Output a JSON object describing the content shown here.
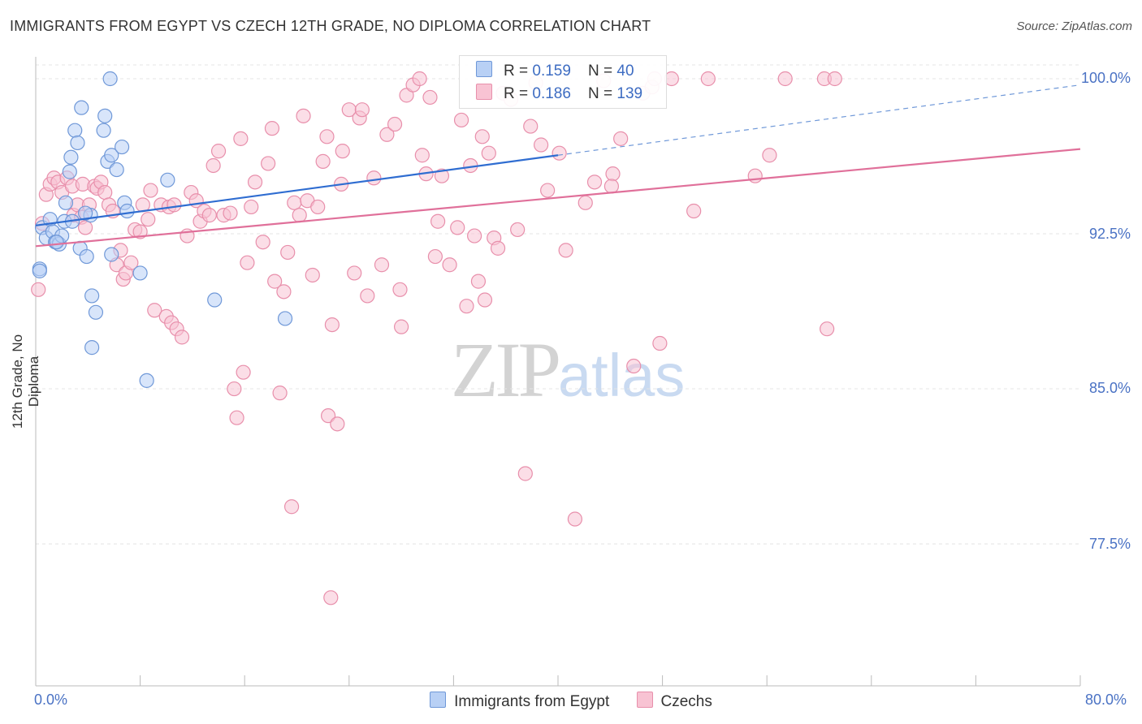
{
  "title": "IMMIGRANTS FROM EGYPT VS CZECH 12TH GRADE, NO DIPLOMA CORRELATION CHART",
  "source": "Source: ZipAtlas.com",
  "watermark": {
    "zip": "ZIP",
    "atlas": "atlas"
  },
  "legend": {
    "rows": [
      {
        "r_label": "R = ",
        "r_value": "0.159",
        "n_label": "N = ",
        "n_value": "40"
      },
      {
        "r_label": "R = ",
        "r_value": "0.186",
        "n_label": "N = ",
        "n_value": "139"
      }
    ]
  },
  "colors": {
    "egypt_fill": "#b8d0f5",
    "egypt_stroke": "#6f98d8",
    "egypt_line": "#2f6dd1",
    "czech_fill": "#f8c3d3",
    "czech_stroke": "#e88fab",
    "czech_line": "#e0709a",
    "tick_text": "#4a72c4",
    "grid": "#e4e4e4"
  },
  "chart_data": {
    "type": "scatter",
    "title": "IMMIGRANTS FROM EGYPT VS CZECH 12TH GRADE, NO DIPLOMA CORRELATION CHART",
    "xlabel": "",
    "ylabel": "12th Grade, No Diploma",
    "xlim": [
      0,
      80
    ],
    "ylim": [
      71.5,
      101.5
    ],
    "x_tick_labels": [
      "0.0%",
      "80.0%"
    ],
    "y_ticks": [
      77.5,
      85.0,
      92.5,
      100.0
    ],
    "y_tick_labels": [
      "77.5%",
      "85.0%",
      "92.5%",
      "100.0%"
    ],
    "grid": true,
    "series": [
      {
        "name": "Immigrants from Egypt",
        "R": 0.159,
        "N": 40,
        "trend": {
          "x0": 0,
          "y0": 92.9,
          "x1": 40,
          "y1": 96.3,
          "dash_to_x": 80,
          "dash_to_y": 99.7
        },
        "points": [
          [
            0.5,
            92.8
          ],
          [
            0.8,
            92.3
          ],
          [
            1.1,
            93.2
          ],
          [
            1.3,
            92.6
          ],
          [
            1.5,
            92.1
          ],
          [
            1.8,
            92.0
          ],
          [
            2.0,
            92.4
          ],
          [
            2.2,
            93.1
          ],
          [
            2.3,
            94.0
          ],
          [
            2.6,
            95.5
          ],
          [
            2.7,
            96.2
          ],
          [
            3.0,
            97.5
          ],
          [
            3.2,
            96.9
          ],
          [
            3.5,
            98.6
          ],
          [
            3.4,
            91.8
          ],
          [
            3.9,
            91.4
          ],
          [
            4.2,
            93.4
          ],
          [
            4.3,
            89.5
          ],
          [
            4.6,
            88.7
          ],
          [
            4.3,
            87.0
          ],
          [
            5.2,
            97.5
          ],
          [
            5.3,
            98.2
          ],
          [
            5.5,
            96.0
          ],
          [
            5.8,
            96.3
          ],
          [
            5.8,
            91.5
          ],
          [
            6.2,
            95.6
          ],
          [
            6.6,
            96.7
          ],
          [
            6.8,
            94.0
          ],
          [
            7.0,
            93.6
          ],
          [
            8.0,
            90.6
          ],
          [
            8.5,
            85.4
          ],
          [
            10.1,
            95.1
          ],
          [
            13.7,
            89.3
          ],
          [
            19.1,
            88.4
          ],
          [
            5.7,
            100.0
          ],
          [
            0.3,
            90.8
          ],
          [
            0.3,
            90.7
          ],
          [
            2.8,
            93.1
          ],
          [
            1.6,
            92.1
          ],
          [
            3.8,
            93.5
          ]
        ]
      },
      {
        "name": "Czechs",
        "R": 0.186,
        "N": 139,
        "trend": {
          "x0": 0,
          "y0": 91.9,
          "x1": 80,
          "y1": 96.6
        },
        "points": [
          [
            0.2,
            89.8
          ],
          [
            0.5,
            93.0
          ],
          [
            0.8,
            94.4
          ],
          [
            1.1,
            94.9
          ],
          [
            1.4,
            95.2
          ],
          [
            1.7,
            95.0
          ],
          [
            2.0,
            94.5
          ],
          [
            2.4,
            95.2
          ],
          [
            2.8,
            94.8
          ],
          [
            2.9,
            93.4
          ],
          [
            3.2,
            93.9
          ],
          [
            3.5,
            93.3
          ],
          [
            3.6,
            94.9
          ],
          [
            3.8,
            92.8
          ],
          [
            4.1,
            93.9
          ],
          [
            4.5,
            94.8
          ],
          [
            4.7,
            94.7
          ],
          [
            5.0,
            95.0
          ],
          [
            5.3,
            94.5
          ],
          [
            5.6,
            93.9
          ],
          [
            5.9,
            93.6
          ],
          [
            6.2,
            91.0
          ],
          [
            6.5,
            91.7
          ],
          [
            6.7,
            90.3
          ],
          [
            6.9,
            90.6
          ],
          [
            7.3,
            91.1
          ],
          [
            7.6,
            92.7
          ],
          [
            8.0,
            92.6
          ],
          [
            8.2,
            93.9
          ],
          [
            8.6,
            93.2
          ],
          [
            8.8,
            94.6
          ],
          [
            9.1,
            88.8
          ],
          [
            9.6,
            93.9
          ],
          [
            10.2,
            93.8
          ],
          [
            10.6,
            93.9
          ],
          [
            10.0,
            88.5
          ],
          [
            10.4,
            88.2
          ],
          [
            10.8,
            87.9
          ],
          [
            11.2,
            87.5
          ],
          [
            11.6,
            92.4
          ],
          [
            11.9,
            94.5
          ],
          [
            12.3,
            94.1
          ],
          [
            12.6,
            93.1
          ],
          [
            12.9,
            93.6
          ],
          [
            13.3,
            93.4
          ],
          [
            13.6,
            95.8
          ],
          [
            14.0,
            96.5
          ],
          [
            14.4,
            93.4
          ],
          [
            14.9,
            93.5
          ],
          [
            15.2,
            85.0
          ],
          [
            15.4,
            83.6
          ],
          [
            15.7,
            97.1
          ],
          [
            15.9,
            85.8
          ],
          [
            16.2,
            91.1
          ],
          [
            16.5,
            93.8
          ],
          [
            16.8,
            95.0
          ],
          [
            17.4,
            92.1
          ],
          [
            17.8,
            95.9
          ],
          [
            18.1,
            97.6
          ],
          [
            18.3,
            90.2
          ],
          [
            18.7,
            84.8
          ],
          [
            19.0,
            89.7
          ],
          [
            19.3,
            91.6
          ],
          [
            19.6,
            79.3
          ],
          [
            19.8,
            94.0
          ],
          [
            20.2,
            93.4
          ],
          [
            20.5,
            98.2
          ],
          [
            20.8,
            94.1
          ],
          [
            21.2,
            90.5
          ],
          [
            21.6,
            93.8
          ],
          [
            22.0,
            96.0
          ],
          [
            22.3,
            97.2
          ],
          [
            22.4,
            83.7
          ],
          [
            22.7,
            88.1
          ],
          [
            23.1,
            83.3
          ],
          [
            22.6,
            74.9
          ],
          [
            23.5,
            96.5
          ],
          [
            23.4,
            94.9
          ],
          [
            24.0,
            98.5
          ],
          [
            24.4,
            90.6
          ],
          [
            24.8,
            98.1
          ],
          [
            25.0,
            98.5
          ],
          [
            25.4,
            89.5
          ],
          [
            25.9,
            95.2
          ],
          [
            26.5,
            91.0
          ],
          [
            26.9,
            97.3
          ],
          [
            27.5,
            97.8
          ],
          [
            27.9,
            89.8
          ],
          [
            28.0,
            88.0
          ],
          [
            28.4,
            99.2
          ],
          [
            28.9,
            99.7
          ],
          [
            29.4,
            100.0
          ],
          [
            29.6,
            96.3
          ],
          [
            29.9,
            95.4
          ],
          [
            30.2,
            99.1
          ],
          [
            30.6,
            91.4
          ],
          [
            30.8,
            93.1
          ],
          [
            31.1,
            95.3
          ],
          [
            31.7,
            91.0
          ],
          [
            32.3,
            92.8
          ],
          [
            32.6,
            98.0
          ],
          [
            33.0,
            89.0
          ],
          [
            33.3,
            95.8
          ],
          [
            33.6,
            92.4
          ],
          [
            33.9,
            90.2
          ],
          [
            34.2,
            97.2
          ],
          [
            34.4,
            89.3
          ],
          [
            34.7,
            96.4
          ],
          [
            35.1,
            92.3
          ],
          [
            35.4,
            91.8
          ],
          [
            35.8,
            99.3
          ],
          [
            36.4,
            99.0
          ],
          [
            36.9,
            92.7
          ],
          [
            37.5,
            80.9
          ],
          [
            37.9,
            97.7
          ],
          [
            38.3,
            99.8
          ],
          [
            38.7,
            96.8
          ],
          [
            39.2,
            94.6
          ],
          [
            40.1,
            96.4
          ],
          [
            40.6,
            91.7
          ],
          [
            41.3,
            78.7
          ],
          [
            42.1,
            94.0
          ],
          [
            42.8,
            95.0
          ],
          [
            43.5,
            99.9
          ],
          [
            44.2,
            95.4
          ],
          [
            44.8,
            97.1
          ],
          [
            45.8,
            86.1
          ],
          [
            46.5,
            99.3
          ],
          [
            47.2,
            99.6
          ],
          [
            47.8,
            87.2
          ],
          [
            48.7,
            100.0
          ],
          [
            50.4,
            93.6
          ],
          [
            51.5,
            100.0
          ],
          [
            55.1,
            95.3
          ],
          [
            56.2,
            96.3
          ],
          [
            57.4,
            100.0
          ],
          [
            60.4,
            100.0
          ],
          [
            60.6,
            87.9
          ],
          [
            61.2,
            100.0
          ],
          [
            44.1,
            94.8
          ],
          [
            47.4,
            100.0
          ]
        ]
      }
    ],
    "legend": [
      "Immigrants from Egypt",
      "Czechs"
    ]
  }
}
